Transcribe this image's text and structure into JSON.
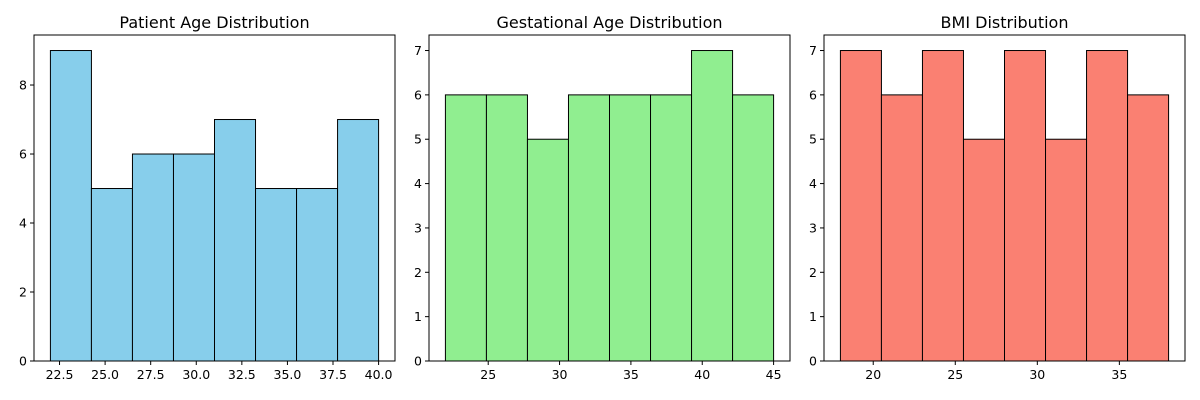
{
  "chart_data": [
    {
      "type": "bar",
      "title": "Patient Age Distribution",
      "color": "#87ceeb",
      "edge_color": "#000000",
      "bin_edges": [
        22.0,
        24.25,
        26.5,
        28.75,
        31.0,
        33.25,
        35.5,
        37.75,
        40.0
      ],
      "values": [
        9,
        5,
        6,
        6,
        7,
        5,
        5,
        7
      ],
      "xlim": [
        21.1,
        40.9
      ],
      "ylim": [
        0,
        9.45
      ],
      "xticks": [
        22.5,
        25.0,
        27.5,
        30.0,
        32.5,
        35.0,
        37.5,
        40.0
      ],
      "xtick_labels": [
        "22.5",
        "25.0",
        "27.5",
        "30.0",
        "32.5",
        "35.0",
        "37.5",
        "40.0"
      ],
      "yticks": [
        0,
        2,
        4,
        6,
        8
      ],
      "ytick_labels": [
        "0",
        "2",
        "4",
        "6",
        "8"
      ],
      "xlabel": "",
      "ylabel": "",
      "grid": false
    },
    {
      "type": "bar",
      "title": "Gestational Age Distribution",
      "color": "#90ee90",
      "edge_color": "#000000",
      "bin_edges": [
        22.0,
        24.875,
        27.75,
        30.625,
        33.5,
        36.375,
        39.25,
        42.125,
        45.0
      ],
      "values": [
        6,
        6,
        5,
        6,
        6,
        6,
        7,
        6
      ],
      "xlim": [
        20.85,
        46.15
      ],
      "ylim": [
        0,
        7.35
      ],
      "xticks": [
        25,
        30,
        35,
        40,
        45
      ],
      "xtick_labels": [
        "25",
        "30",
        "35",
        "40",
        "45"
      ],
      "yticks": [
        0,
        1,
        2,
        3,
        4,
        5,
        6,
        7
      ],
      "ytick_labels": [
        "0",
        "1",
        "2",
        "3",
        "4",
        "5",
        "6",
        "7"
      ],
      "xlabel": "",
      "ylabel": "",
      "grid": false
    },
    {
      "type": "bar",
      "title": "BMI Distribution",
      "color": "#fa8072",
      "edge_color": "#000000",
      "bin_edges": [
        18.0,
        20.5,
        23.0,
        25.5,
        28.0,
        30.5,
        33.0,
        35.5,
        38.0
      ],
      "values": [
        7,
        6,
        7,
        5,
        7,
        5,
        7,
        6
      ],
      "xlim": [
        17.0,
        39.0
      ],
      "ylim": [
        0,
        7.35
      ],
      "xticks": [
        20,
        25,
        30,
        35
      ],
      "xtick_labels": [
        "20",
        "25",
        "30",
        "35"
      ],
      "yticks": [
        0,
        1,
        2,
        3,
        4,
        5,
        6,
        7
      ],
      "ytick_labels": [
        "0",
        "1",
        "2",
        "3",
        "4",
        "5",
        "6",
        "7"
      ],
      "xlabel": "",
      "ylabel": "",
      "grid": false
    }
  ]
}
